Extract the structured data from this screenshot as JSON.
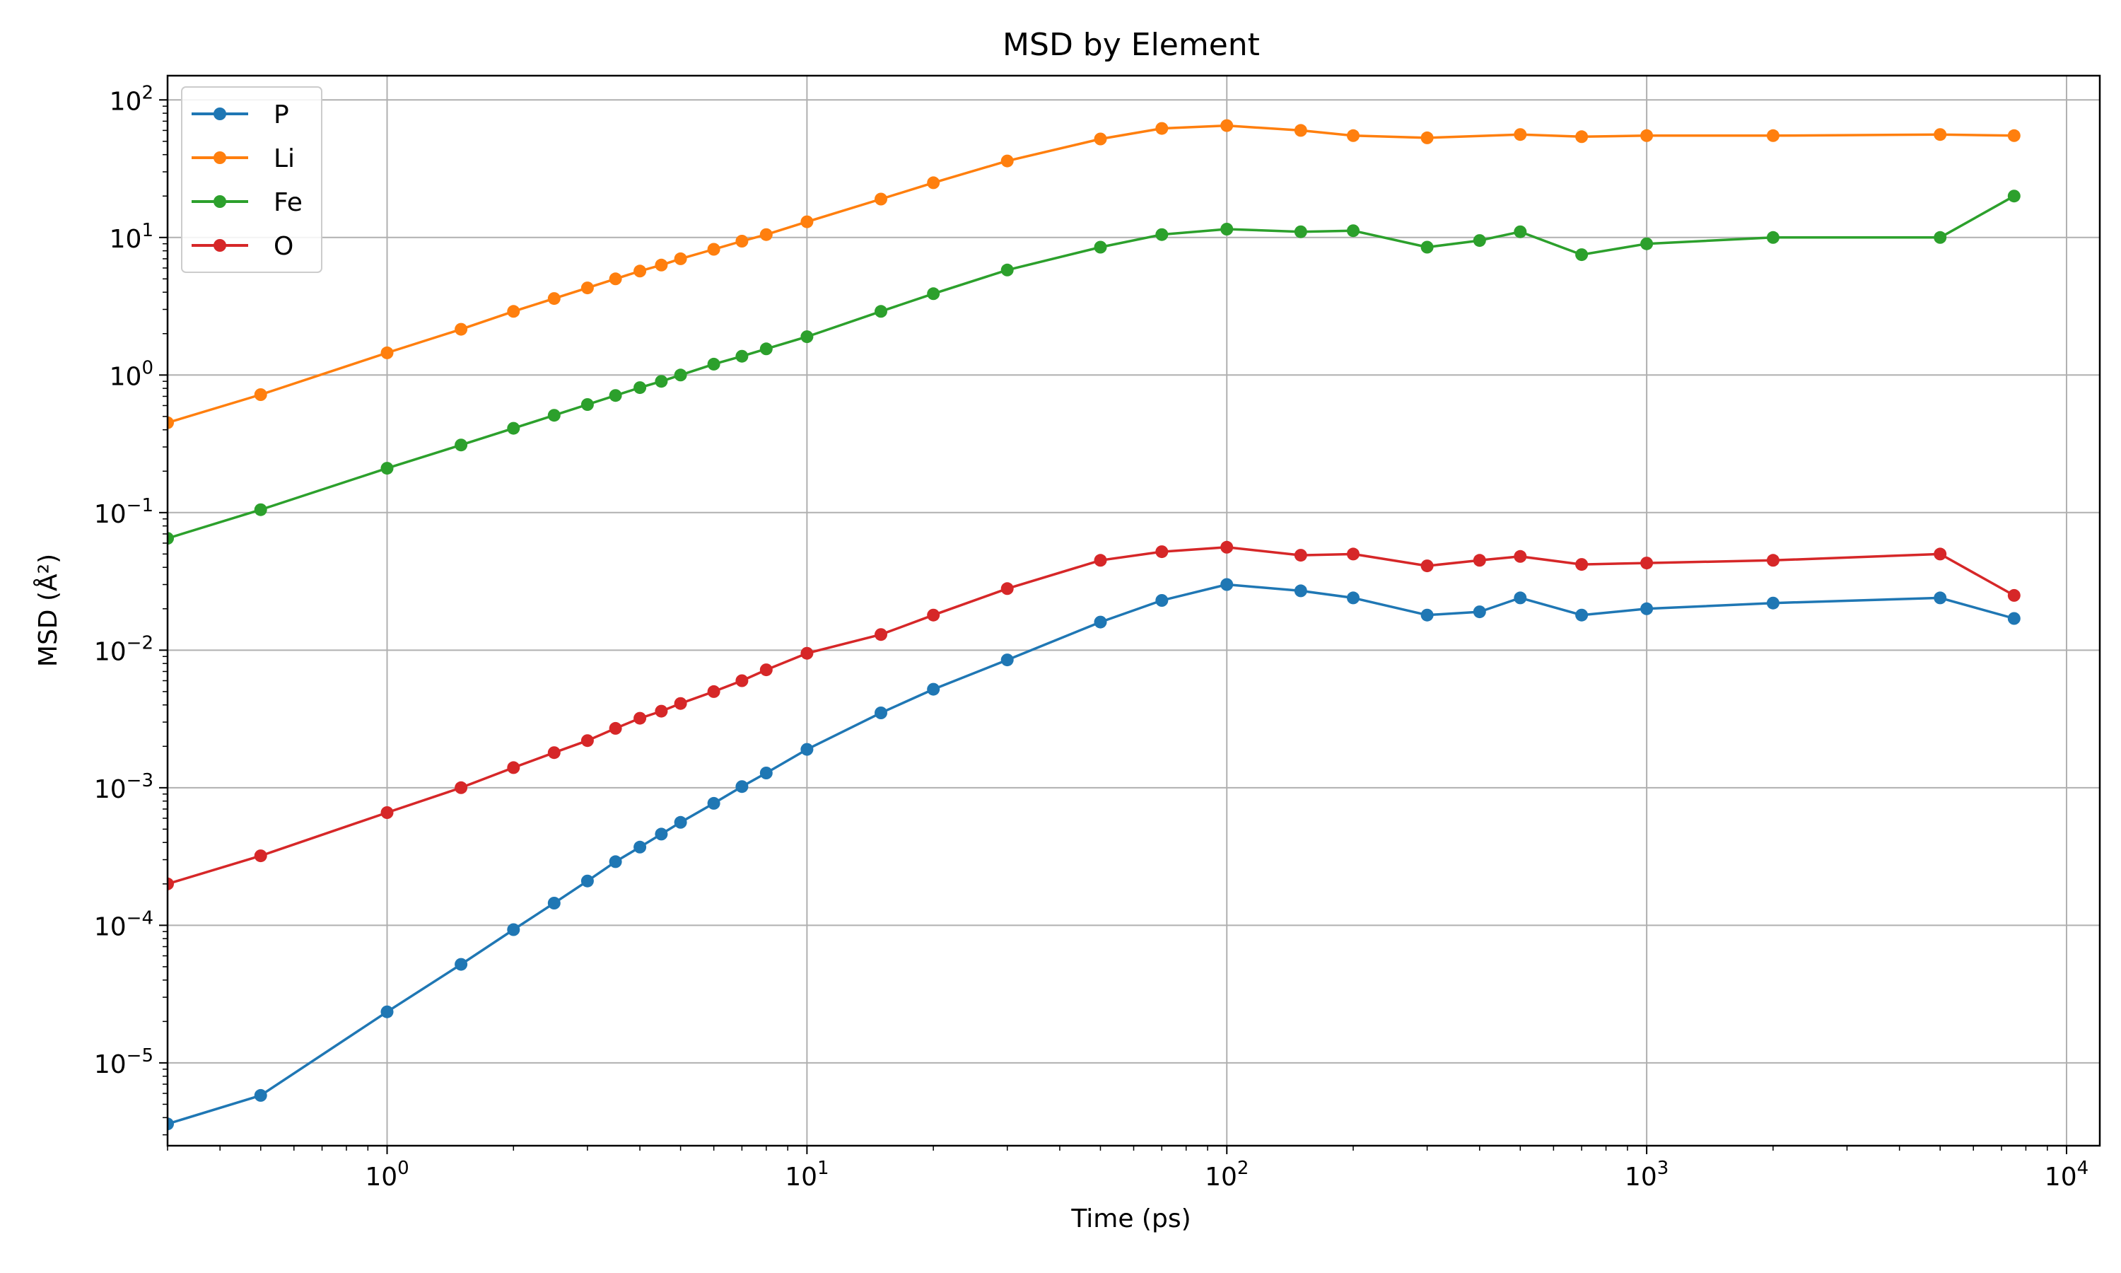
{
  "chart_data": {
    "type": "line",
    "title": "MSD by Element",
    "xlabel": "Time (ps)",
    "ylabel": "MSD (Å²)",
    "xscale": "log",
    "yscale": "log",
    "xlim": [
      0.3,
      12000
    ],
    "ylim": [
      2.5e-06,
      150
    ],
    "grid": true,
    "legend_position": "top-left",
    "x_ticks": [
      {
        "base": "10",
        "exp": "0",
        "value": 1
      },
      {
        "base": "10",
        "exp": "1",
        "value": 10
      },
      {
        "base": "10",
        "exp": "2",
        "value": 100
      },
      {
        "base": "10",
        "exp": "3",
        "value": 1000
      },
      {
        "base": "10",
        "exp": "4",
        "value": 10000
      }
    ],
    "y_ticks": [
      {
        "base": "10",
        "exp": "−5",
        "value": 1e-05
      },
      {
        "base": "10",
        "exp": "−4",
        "value": 0.0001
      },
      {
        "base": "10",
        "exp": "−3",
        "value": 0.001
      },
      {
        "base": "10",
        "exp": "−2",
        "value": 0.01
      },
      {
        "base": "10",
        "exp": "−1",
        "value": 0.1
      },
      {
        "base": "10",
        "exp": "0",
        "value": 1
      },
      {
        "base": "10",
        "exp": "1",
        "value": 10
      },
      {
        "base": "10",
        "exp": "2",
        "value": 100
      }
    ],
    "series": [
      {
        "name": "P",
        "color": "#1f77b4",
        "x": [
          0.3,
          0.5,
          1,
          1.5,
          2,
          2.5,
          3,
          3.5,
          4,
          4.5,
          5,
          6,
          7,
          8,
          10,
          15,
          20,
          30,
          50,
          70,
          100,
          150,
          200,
          300,
          400,
          500,
          700,
          1000,
          2000,
          5000,
          7500
        ],
        "y": [
          3.6e-06,
          5.8e-06,
          2.35e-05,
          5.2e-05,
          9.3e-05,
          0.000145,
          0.00021,
          0.00029,
          0.00037,
          0.00046,
          0.00056,
          0.00077,
          0.00102,
          0.00128,
          0.0019,
          0.0035,
          0.0052,
          0.0085,
          0.016,
          0.023,
          0.03,
          0.027,
          0.024,
          0.018,
          0.019,
          0.024,
          0.018,
          0.02,
          0.022,
          0.024,
          0.017
        ]
      },
      {
        "name": "Li",
        "color": "#ff7f0e",
        "x": [
          0.3,
          0.5,
          1,
          1.5,
          2,
          2.5,
          3,
          3.5,
          4,
          4.5,
          5,
          6,
          7,
          8,
          10,
          15,
          20,
          30,
          50,
          70,
          100,
          150,
          200,
          300,
          500,
          700,
          1000,
          2000,
          5000,
          7500
        ],
        "y": [
          0.45,
          0.72,
          1.45,
          2.15,
          2.9,
          3.6,
          4.3,
          5.0,
          5.7,
          6.3,
          7.0,
          8.2,
          9.4,
          10.5,
          13,
          19,
          25,
          36,
          52,
          62,
          65,
          60,
          55,
          53,
          56,
          54,
          55,
          55,
          56,
          55
        ]
      },
      {
        "name": "Fe",
        "color": "#2ca02c",
        "x": [
          0.3,
          0.5,
          1,
          1.5,
          2,
          2.5,
          3,
          3.5,
          4,
          4.5,
          5,
          6,
          7,
          8,
          10,
          15,
          20,
          30,
          50,
          70,
          100,
          150,
          200,
          300,
          400,
          500,
          700,
          1000,
          2000,
          5000,
          7500
        ],
        "y": [
          0.065,
          0.105,
          0.21,
          0.31,
          0.41,
          0.51,
          0.61,
          0.71,
          0.81,
          0.9,
          1.0,
          1.2,
          1.37,
          1.55,
          1.9,
          2.9,
          3.9,
          5.8,
          8.5,
          10.5,
          11.5,
          11,
          11.2,
          8.5,
          9.5,
          11,
          7.5,
          9,
          10,
          10,
          20
        ]
      },
      {
        "name": "O",
        "color": "#d62728",
        "x": [
          0.3,
          0.5,
          1,
          1.5,
          2,
          2.5,
          3,
          3.5,
          4,
          4.5,
          5,
          6,
          7,
          8,
          10,
          15,
          20,
          30,
          50,
          70,
          100,
          150,
          200,
          300,
          400,
          500,
          700,
          1000,
          2000,
          5000,
          7500
        ],
        "y": [
          0.0002,
          0.00032,
          0.00066,
          0.001,
          0.0014,
          0.0018,
          0.0022,
          0.0027,
          0.0032,
          0.0036,
          0.0041,
          0.005,
          0.006,
          0.0072,
          0.0095,
          0.013,
          0.018,
          0.028,
          0.045,
          0.052,
          0.056,
          0.049,
          0.05,
          0.041,
          0.045,
          0.048,
          0.042,
          0.043,
          0.045,
          0.05,
          0.025
        ]
      }
    ]
  }
}
